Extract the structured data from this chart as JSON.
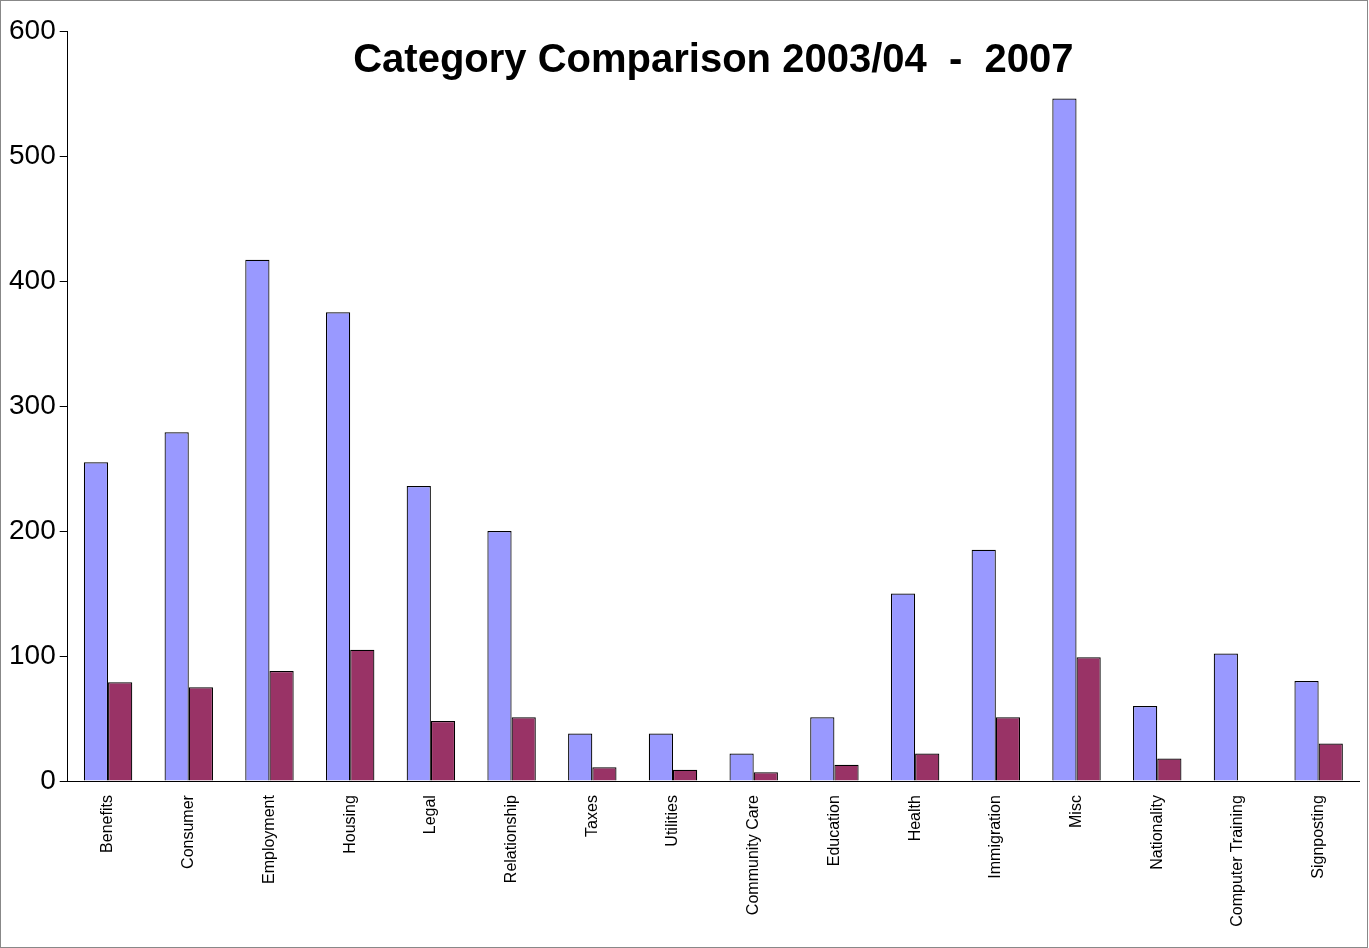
{
  "chart_data": {
    "type": "bar",
    "title": "Category Comparison 2003/04  -  2007",
    "categories": [
      "Benefits",
      "Consumer",
      "Employment",
      "Housing",
      "Legal",
      "Relationship",
      "Taxes",
      "Utilities",
      "Community Care",
      "Education",
      "Health",
      "Immigration",
      "Misc",
      "Nationality",
      "Computer Training",
      "Signposting"
    ],
    "series": [
      {
        "color": "#9999ff",
        "values": [
          255,
          279,
          417,
          375,
          236,
          200,
          38,
          38,
          22,
          51,
          150,
          185,
          546,
          60,
          102,
          80
        ]
      },
      {
        "color": "#993366",
        "values": [
          79,
          75,
          88,
          105,
          48,
          51,
          11,
          9,
          7,
          13,
          22,
          51,
          99,
          18,
          0,
          30
        ]
      }
    ],
    "ylim": [
      0,
      600
    ],
    "yticks": [
      0,
      100,
      200,
      300,
      400,
      500,
      600
    ],
    "grid": false,
    "legend": false
  }
}
